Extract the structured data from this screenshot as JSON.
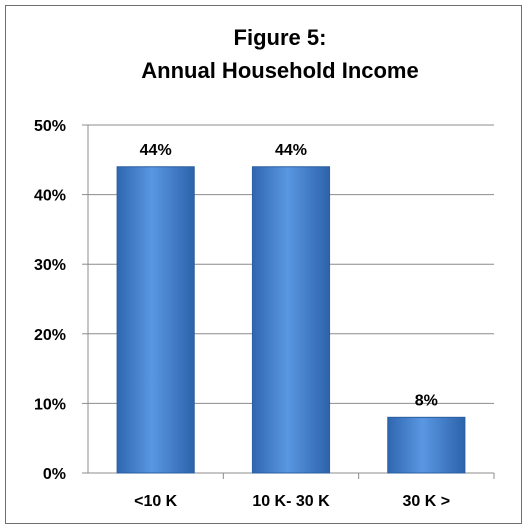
{
  "chart_data": {
    "type": "bar",
    "title": "Figure 5:",
    "subtitle": "Annual Household Income",
    "categories": [
      "<10 K",
      "10 K- 30 K",
      "30 K >"
    ],
    "values": [
      44,
      44,
      8
    ],
    "data_labels": [
      "44%",
      "44%",
      "8%"
    ],
    "xlabel": "",
    "ylabel": "",
    "ylim": [
      0,
      50
    ],
    "y_ticks": [
      0,
      10,
      20,
      30,
      40,
      50
    ],
    "y_tick_labels": [
      "0%",
      "10%",
      "20%",
      "30%",
      "40%",
      "50%"
    ],
    "grid": true,
    "legend": "none",
    "bar_color": "#3f7fd0",
    "bar_edge_color": "#2a5f9f"
  }
}
